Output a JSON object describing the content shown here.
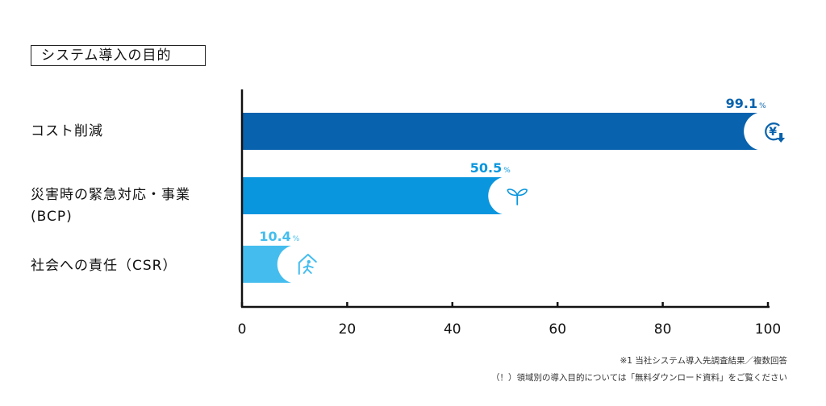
{
  "chart_title": "システム導入の目的",
  "chart_data": {
    "type": "bar",
    "orientation": "horizontal",
    "categories": [
      "コスト削減",
      "災害時の緊急対応・事業\n(BCP)",
      "社会への責任（CSR）"
    ],
    "category_lines": [
      [
        "コスト削減"
      ],
      [
        "災害時の緊急対応・事業",
        "(BCP)"
      ],
      [
        "社会への責任（CSR）"
      ]
    ],
    "values": [
      99.1,
      50.5,
      10.4
    ],
    "value_labels": [
      "99.1",
      "50.5",
      "10.4"
    ],
    "value_unit": "%",
    "bar_colors": [
      "#0862ad",
      "#0996de",
      "#44bdee"
    ],
    "label_colors": [
      "#0862ad",
      "#0996de",
      "#44bdee"
    ],
    "icons": [
      "yen-down-icon",
      "sprout-icon",
      "house-exit-icon"
    ],
    "xlim": [
      0,
      100
    ],
    "xticks": [
      "0",
      "20",
      "40",
      "60",
      "80",
      "100"
    ],
    "xlabel": "",
    "ylabel": "",
    "grid": false,
    "legend": "none"
  },
  "footnotes": [
    "※1 当社システム導入先調査結果／複数回答",
    "（！）領域別の導入目的については「無料ダウンロード資料」をご覧ください"
  ]
}
